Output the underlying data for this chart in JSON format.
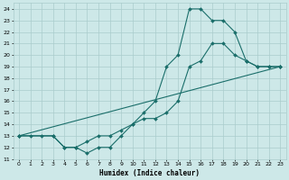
{
  "xlabel": "Humidex (Indice chaleur)",
  "ylabel": "",
  "bg_color": "#cde8e8",
  "grid_color": "#aacccc",
  "line_color": "#1a6e6a",
  "xlim": [
    -0.5,
    23.5
  ],
  "ylim": [
    11,
    24.5
  ],
  "xticks": [
    0,
    1,
    2,
    3,
    4,
    5,
    6,
    7,
    8,
    9,
    10,
    11,
    12,
    13,
    14,
    15,
    16,
    17,
    18,
    19,
    20,
    21,
    22,
    23
  ],
  "yticks": [
    11,
    12,
    13,
    14,
    15,
    16,
    17,
    18,
    19,
    20,
    21,
    22,
    23,
    24
  ],
  "line1": {
    "x": [
      0,
      1,
      2,
      3,
      4,
      5,
      6,
      7,
      8,
      9,
      10,
      11,
      12,
      13,
      14,
      15,
      16,
      17,
      18,
      19,
      20,
      21,
      22,
      23
    ],
    "y": [
      13,
      13,
      13,
      13,
      12,
      12,
      11.5,
      12,
      12,
      13,
      14,
      15,
      16,
      19,
      20,
      24,
      24,
      23,
      23,
      22,
      19.5,
      19,
      19,
      19
    ]
  },
  "line2": {
    "x": [
      0,
      3,
      4,
      5,
      6,
      7,
      8,
      9,
      10,
      11,
      12,
      13,
      14,
      15,
      16,
      17,
      18,
      19,
      20,
      21,
      22,
      23
    ],
    "y": [
      13,
      13,
      12,
      12,
      12.5,
      13,
      13,
      13.5,
      14,
      14.5,
      14.5,
      15,
      16,
      19,
      19.5,
      21,
      21,
      20,
      19.5,
      19,
      19,
      19
    ]
  },
  "line3": {
    "x": [
      0,
      23
    ],
    "y": [
      13,
      19
    ]
  }
}
